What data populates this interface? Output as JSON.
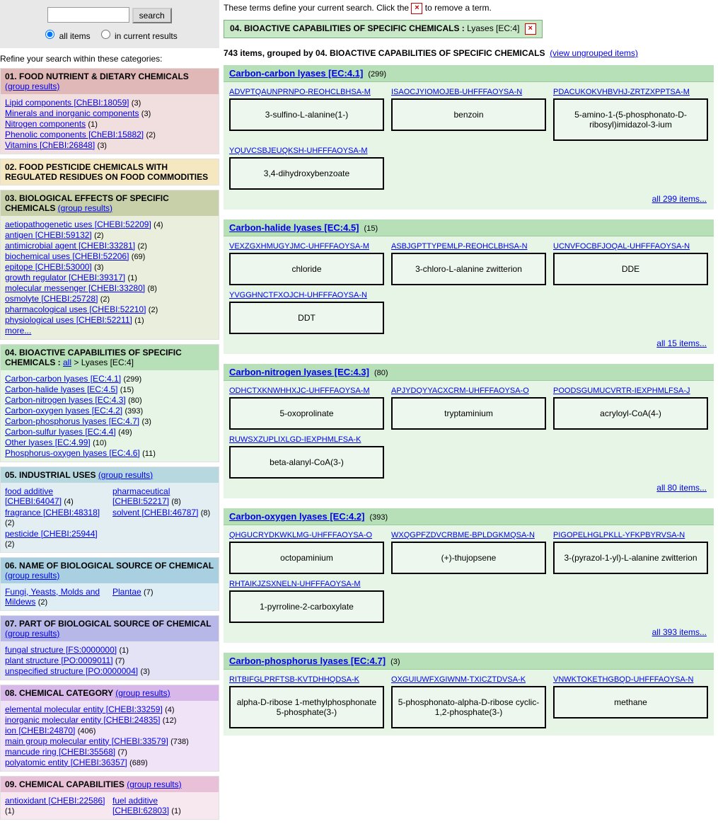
{
  "search": {
    "button_label": "search",
    "radio_all": "all items",
    "radio_current": "in current results"
  },
  "refine_label": "Refine your search within these categories:",
  "group_results_label": "(group results)",
  "more_label": "more...",
  "all_label": "all",
  "categories": [
    {
      "title": "01. FOOD NUTRIENT & DIETARY CHEMICALS",
      "header_bg": "#e0b8b8",
      "body_bg": "#f1dede",
      "has_group_link": true,
      "two_col": false,
      "entries": [
        {
          "label": "Lipid components [ChEBI:18059]",
          "count": 3
        },
        {
          "label": "Minerals and inorganic components",
          "count": 3
        },
        {
          "label": "Nitrogen components",
          "count": 1
        },
        {
          "label": "Phenolic components [ChEBI:15882]",
          "count": 2
        },
        {
          "label": "Vitamins [ChEBI:26848]",
          "count": 3
        }
      ]
    },
    {
      "title": "02. FOOD PESTICIDE CHEMICALS WITH REGULATED RESIDUES ON FOOD COMMODITIES",
      "header_bg": "#f5e7c0",
      "body_bg": "",
      "has_group_link": false,
      "two_col": false,
      "entries": []
    },
    {
      "title": "03. BIOLOGICAL EFFECTS OF SPECIFIC CHEMICALS",
      "header_bg": "#c8d0a9",
      "body_bg": "#eaeedc",
      "has_group_link": true,
      "two_col": false,
      "has_more": true,
      "entries": [
        {
          "label": "aetiopathogenetic uses [CHEBI:52209]",
          "count": 4
        },
        {
          "label": "antigen [CHEBI:59132]",
          "count": 2
        },
        {
          "label": "antimicrobial agent [CHEBI:33281]",
          "count": 2
        },
        {
          "label": "biochemical uses [CHEBI:52206]",
          "count": 69
        },
        {
          "label": "epitope [CHEBI:53000]",
          "count": 3
        },
        {
          "label": "growth regulator [CHEBI:39317]",
          "count": 1
        },
        {
          "label": "molecular messenger [CHEBI:33280]",
          "count": 8
        },
        {
          "label": "osmolyte [CHEBI:25728]",
          "count": 2
        },
        {
          "label": "pharmacological uses [CHEBI:52210]",
          "count": 2
        },
        {
          "label": "physiological uses [CHEBI:52211]",
          "count": 1
        }
      ]
    },
    {
      "title": "04. BIOACTIVE CAPABILITIES OF SPECIFIC CHEMICALS",
      "header_bg": "#b8e0b8",
      "body_bg": "#e6f5e6",
      "has_group_link": false,
      "breadcrumb_suffix": " > Lyases [EC:4]",
      "two_col": false,
      "entries": [
        {
          "label": "Carbon-carbon lyases [EC:4.1]",
          "count": 299
        },
        {
          "label": "Carbon-halide lyases [EC:4.5]",
          "count": 15
        },
        {
          "label": "Carbon-nitrogen lyases [EC:4.3]",
          "count": 80
        },
        {
          "label": "Carbon-oxygen lyases [EC:4.2]",
          "count": 393
        },
        {
          "label": "Carbon-phosphorus lyases [EC:4.7]",
          "count": 3
        },
        {
          "label": "Carbon-sulfur lyases [EC:4.4]",
          "count": 49
        },
        {
          "label": "Other lyases [EC:4.99]",
          "count": 10
        },
        {
          "label": "Phosphorus-oxygen lyases [EC:4.6]",
          "count": 11
        }
      ]
    },
    {
      "title": "05. INDUSTRIAL USES",
      "header_bg": "#b8d8e0",
      "body_bg": "#e2eef2",
      "has_group_link": true,
      "group_link_inline": true,
      "two_col": true,
      "entries": [
        {
          "label": "food additive [CHEBI:64047]",
          "count": 4
        },
        {
          "label": "pharmaceutical [CHEBI:52217]",
          "count": 8
        },
        {
          "label": "fragrance [CHEBI:48318]",
          "count": 2
        },
        {
          "label": "solvent [CHEBI:46787]",
          "count": 8
        },
        {
          "label": "pesticide [CHEBI:25944]",
          "count": 2
        }
      ]
    },
    {
      "title": "06. NAME OF BIOLOGICAL SOURCE OF CHEMICAL",
      "header_bg": "#a8d0e0",
      "body_bg": "#dfeef5",
      "has_group_link": true,
      "two_col": true,
      "entries": [
        {
          "label": "Fungi, Yeasts, Molds and Mildews",
          "count": 2
        },
        {
          "label": "Plantae",
          "count": 7
        }
      ]
    },
    {
      "title": "07. PART OF BIOLOGICAL SOURCE OF CHEMICAL",
      "header_bg": "#b8b8e8",
      "body_bg": "#e3e3f5",
      "has_group_link": true,
      "two_col": false,
      "entries": [
        {
          "label": "fungal structure [FS:0000000]",
          "count": 1
        },
        {
          "label": "plant structure [PO:0009011]",
          "count": 7
        },
        {
          "label": "unspecified structure [PO:0000004]",
          "count": 3
        }
      ]
    },
    {
      "title": "08. CHEMICAL CATEGORY",
      "header_bg": "#d8b8e8",
      "body_bg": "#f0e3f7",
      "has_group_link": true,
      "group_link_inline": true,
      "two_col": false,
      "entries": [
        {
          "label": "elemental molecular entity [CHEBI:33259]",
          "count": 4
        },
        {
          "label": "inorganic molecular entity [CHEBI:24835]",
          "count": 12
        },
        {
          "label": "ion [CHEBI:24870]",
          "count": 406
        },
        {
          "label": "main group molecular entity [CHEBI:33579]",
          "count": 738
        },
        {
          "label": "mancude ring [CHEBI:35568]",
          "count": 7
        },
        {
          "label": "polyatomic entity [CHEBI:36357]",
          "count": 689
        }
      ]
    },
    {
      "title": "09. CHEMICAL CAPABILITIES",
      "header_bg": "#e8c0d8",
      "body_bg": "#f7e8f0",
      "has_group_link": true,
      "group_link_inline": true,
      "two_col": true,
      "entries": [
        {
          "label": "antioxidant [CHEBI:22586]",
          "count": 1
        },
        {
          "label": "fuel additive [CHEBI:62803]",
          "count": 1
        }
      ]
    }
  ],
  "top_text": {
    "prefix": "These terms define your current search. Click the ",
    "suffix": " to remove a term."
  },
  "active_term": {
    "prefix": "04. BIOACTIVE CAPABILITIES OF SPECIFIC CHEMICALS :",
    "value": " Lyases [EC:4]"
  },
  "count_line": {
    "items": "743 items, grouped by 04. BIOACTIVE CAPABILITIES OF SPECIFIC CHEMICALS",
    "link": "(view ungrouped items)"
  },
  "groups": [
    {
      "title": "Carbon-carbon lyases [EC:4.1]",
      "count": 299,
      "all_link": "all 299 items...",
      "items": [
        {
          "id": "ADVPTQAUNPRNPO-REOHCLBHSA-M",
          "name": "3-sulfino-L-alanine(1-)"
        },
        {
          "id": "ISAOCJYIOMOJEB-UHFFFAOYSA-N",
          "name": "benzoin"
        },
        {
          "id": "PDACUKOKVHBVHJ-ZRTZXPPTSA-M",
          "name": "5-amino-1-(5-phosphonato-D-ribosyl)imidazol-3-ium"
        },
        {
          "id": "YQUVCSBJEUQKSH-UHFFFAOYSA-M",
          "name": "3,4-dihydroxybenzoate"
        }
      ]
    },
    {
      "title": "Carbon-halide lyases [EC:4.5]",
      "count": 15,
      "all_link": "all 15 items...",
      "items": [
        {
          "id": "VEXZGXHMUGYJMC-UHFFFAOYSA-M",
          "name": "chloride"
        },
        {
          "id": "ASBJGPTTYPEMLP-REOHCLBHSA-N",
          "name": "3-chloro-L-alanine zwitterion"
        },
        {
          "id": "UCNVFOCBFJOQAL-UHFFFAOYSA-N",
          "name": "DDE"
        },
        {
          "id": "YVGGHNCTFXOJCH-UHFFFAOYSA-N",
          "name": "DDT"
        }
      ]
    },
    {
      "title": "Carbon-nitrogen lyases [EC:4.3]",
      "count": 80,
      "all_link": "all 80 items...",
      "items": [
        {
          "id": "ODHCTXKNWHHXJC-UHFFFAOYSA-M",
          "name": "5-oxoprolinate"
        },
        {
          "id": "APJYDQYYACXCRM-UHFFFAOYSA-O",
          "name": "tryptaminium"
        },
        {
          "id": "POODSGUMUCVRTR-IEXPHMLFSA-J",
          "name": "acryloyl-CoA(4-)"
        },
        {
          "id": "RUWSXZUPLIXLGD-IEXPHMLFSA-K",
          "name": "beta-alanyl-CoA(3-)"
        }
      ]
    },
    {
      "title": "Carbon-oxygen lyases [EC:4.2]",
      "count": 393,
      "all_link": "all 393 items...",
      "items": [
        {
          "id": "QHGUCRYDKWKLMG-UHFFFAOYSA-O",
          "name": "octopaminium"
        },
        {
          "id": "WXQGPFZDVCRBME-BPLDGKMQSA-N",
          "name": "(+)-thujopsene"
        },
        {
          "id": "PIGOPELHGLPKLL-YFKPBYRVSA-N",
          "name": "3-(pyrazol-1-yl)-L-alanine zwitterion"
        },
        {
          "id": "RHTAIKJZSXNELN-UHFFFAOYSA-M",
          "name": "1-pyrroline-2-carboxylate"
        }
      ]
    },
    {
      "title": "Carbon-phosphorus lyases [EC:4.7]",
      "count": 3,
      "items": [
        {
          "id": "RITBIFGLPRFTSB-KVTDHHQDSA-K",
          "name": "alpha-D-ribose 1-methylphosphonate 5-phosphate(3-)"
        },
        {
          "id": "OXGUIUWFXGIWNM-TXICZTDVSA-K",
          "name": "5-phosphonato-alpha-D-ribose cyclic-1,2-phosphate(3-)"
        },
        {
          "id": "VNWKTOKETHGBQD-UHFFFAOYSA-N",
          "name": "methane"
        }
      ]
    }
  ]
}
